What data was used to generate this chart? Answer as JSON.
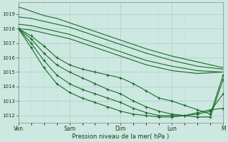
{
  "background_color": "#cce8e0",
  "grid_major_color": "#aacccc",
  "grid_minor_color": "#bbdddd",
  "line_color": "#1a6b2a",
  "ylabel_vals": [
    1012,
    1013,
    1014,
    1015,
    1016,
    1017,
    1018,
    1019
  ],
  "xtick_labels": [
    "Ven",
    "Sam",
    "Dim",
    "Lun",
    "M"
  ],
  "xlabel": "Pression niveau de la mer( hPa )",
  "xlim": [
    0,
    96
  ],
  "ylim": [
    1011.5,
    1019.8
  ],
  "xtick_positions": [
    0,
    24,
    48,
    72,
    96
  ],
  "upper_series": [
    {
      "x": [
        0,
        6,
        12,
        18,
        24,
        36,
        48,
        60,
        72,
        84,
        96
      ],
      "y": [
        1019.5,
        1019.2,
        1018.9,
        1018.7,
        1018.4,
        1017.8,
        1017.2,
        1016.6,
        1016.1,
        1015.7,
        1015.3
      ]
    },
    {
      "x": [
        0,
        6,
        12,
        18,
        24,
        36,
        48,
        60,
        72,
        84,
        96
      ],
      "y": [
        1018.8,
        1018.7,
        1018.5,
        1018.3,
        1018.1,
        1017.5,
        1016.9,
        1016.3,
        1015.8,
        1015.4,
        1015.2
      ]
    },
    {
      "x": [
        0,
        6,
        12,
        18,
        24,
        36,
        48,
        60,
        72,
        84,
        96
      ],
      "y": [
        1018.3,
        1018.2,
        1018.0,
        1017.8,
        1017.6,
        1017.0,
        1016.4,
        1015.8,
        1015.4,
        1015.1,
        1015.0
      ]
    },
    {
      "x": [
        0,
        6,
        12,
        18,
        24,
        36,
        48,
        60,
        72,
        84,
        96
      ],
      "y": [
        1018.0,
        1017.9,
        1017.7,
        1017.5,
        1017.3,
        1016.7,
        1016.1,
        1015.5,
        1015.1,
        1014.9,
        1015.0
      ]
    }
  ],
  "marker_series": [
    {
      "x": [
        0,
        6,
        12,
        18,
        24,
        30,
        36,
        42,
        48,
        54,
        60,
        66,
        72,
        78,
        84,
        90,
        96
      ],
      "y": [
        1018.0,
        1017.5,
        1016.8,
        1016.0,
        1015.5,
        1015.2,
        1015.0,
        1014.8,
        1014.6,
        1014.2,
        1013.7,
        1013.2,
        1013.0,
        1012.7,
        1012.4,
        1012.1,
        1014.8
      ]
    },
    {
      "x": [
        0,
        6,
        12,
        18,
        24,
        30,
        36,
        42,
        48,
        54,
        60,
        66,
        72,
        78,
        84,
        90,
        96
      ],
      "y": [
        1018.0,
        1017.3,
        1016.3,
        1015.5,
        1015.0,
        1014.6,
        1014.2,
        1013.8,
        1013.5,
        1013.0,
        1012.6,
        1012.3,
        1012.1,
        1012.0,
        1011.9,
        1011.9,
        1014.5
      ]
    },
    {
      "x": [
        0,
        6,
        12,
        18,
        24,
        30,
        36,
        42,
        48,
        54,
        60,
        66,
        72,
        78,
        84,
        90,
        96
      ],
      "y": [
        1018.0,
        1017.0,
        1015.8,
        1014.8,
        1014.2,
        1013.8,
        1013.5,
        1013.2,
        1012.9,
        1012.5,
        1012.2,
        1012.0,
        1012.0,
        1012.0,
        1012.1,
        1012.3,
        1013.5
      ]
    },
    {
      "x": [
        0,
        6,
        12,
        18,
        24,
        30,
        36,
        42,
        48,
        54,
        60,
        66,
        72,
        78,
        84,
        90,
        96
      ],
      "y": [
        1018.0,
        1016.7,
        1015.3,
        1014.2,
        1013.6,
        1013.2,
        1012.9,
        1012.6,
        1012.3,
        1012.1,
        1012.0,
        1011.9,
        1011.9,
        1012.0,
        1012.2,
        1012.4,
        1012.5
      ]
    }
  ]
}
